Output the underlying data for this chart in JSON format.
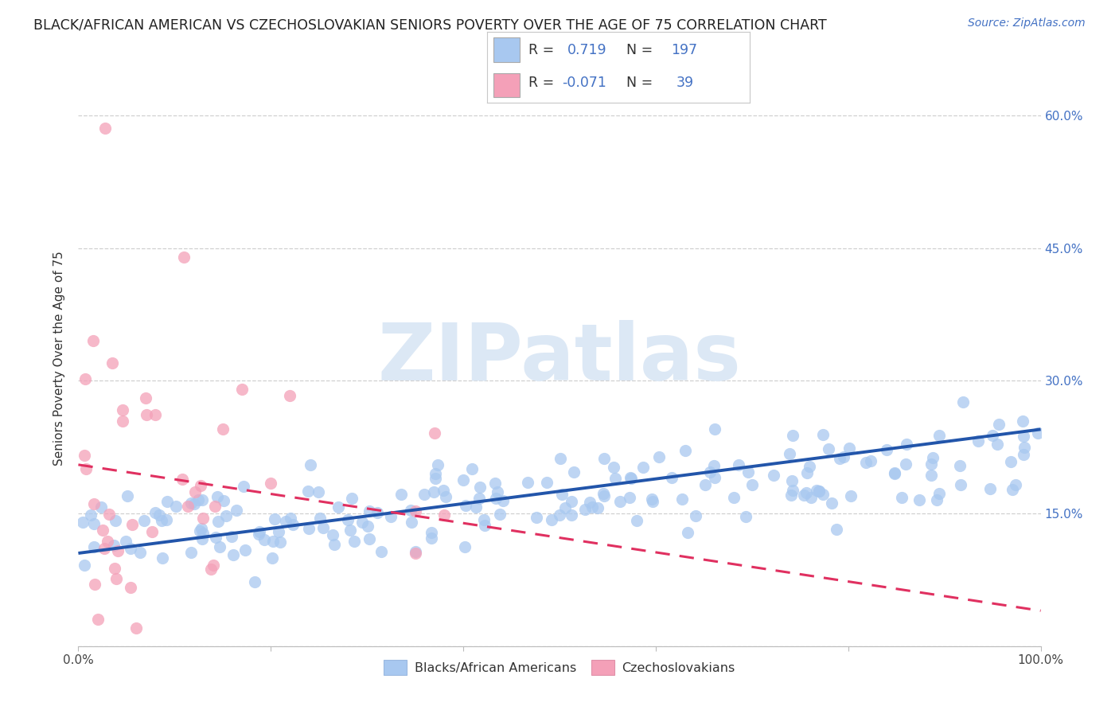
{
  "title": "BLACK/AFRICAN AMERICAN VS CZECHOSLOVAKIAN SENIORS POVERTY OVER THE AGE OF 75 CORRELATION CHART",
  "source": "Source: ZipAtlas.com",
  "ylabel": "Seniors Poverty Over the Age of 75",
  "blue_R": 0.719,
  "blue_N": 197,
  "pink_R": -0.071,
  "pink_N": 39,
  "blue_color": "#a8c8f0",
  "pink_color": "#f4a0b8",
  "blue_line_color": "#2255aa",
  "pink_line_color": "#e03060",
  "watermark_text": "ZIPatlas",
  "watermark_color": "#dce8f5",
  "background_color": "#ffffff",
  "grid_color": "#d0d0d0",
  "legend_label_blue": "Blacks/African Americans",
  "legend_label_pink": "Czechoslovakians",
  "xlim": [
    0.0,
    1.0
  ],
  "ylim": [
    0.0,
    0.65
  ],
  "yticks": [
    0.0,
    0.15,
    0.3,
    0.45,
    0.6
  ],
  "yticklabels_right": [
    "",
    "15.0%",
    "30.0%",
    "45.0%",
    "60.0%"
  ],
  "xtick_left_label": "0.0%",
  "xtick_right_label": "100.0%",
  "title_fontsize": 12.5,
  "tick_fontsize": 11,
  "source_fontsize": 10,
  "ylabel_fontsize": 11,
  "blue_trend_x0": 0.0,
  "blue_trend_y0": 0.105,
  "blue_trend_x1": 1.0,
  "blue_trend_y1": 0.245,
  "pink_trend_x0": 0.0,
  "pink_trend_y0": 0.205,
  "pink_trend_x1": 1.0,
  "pink_trend_y1": 0.04
}
